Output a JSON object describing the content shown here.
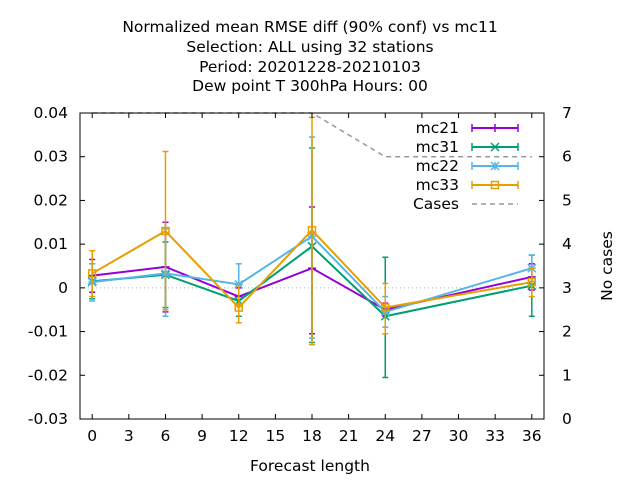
{
  "chart_data": {
    "type": "line",
    "title_lines": [
      "Normalized mean RMSE diff (90% conf) vs mc11",
      "Selection: ALL using    32 stations",
      "Period: 20201228-20210103",
      "Dew point T 300hPa   Hours:  00"
    ],
    "xlabel": "Forecast length",
    "ylabel_right": "No cases",
    "xlim": [
      -1,
      37
    ],
    "ylim": [
      -0.03,
      0.04
    ],
    "y2lim": [
      0,
      7
    ],
    "x_ticks": [
      0,
      3,
      6,
      9,
      12,
      15,
      18,
      21,
      24,
      27,
      30,
      33,
      36
    ],
    "y_ticks": [
      -0.03,
      -0.02,
      -0.01,
      0,
      0.01,
      0.02,
      0.03,
      0.04
    ],
    "y_tick_labels": [
      "-0.03",
      "-0.02",
      "-0.01",
      "0",
      "0.01",
      "0.02",
      "0.03",
      "0.04"
    ],
    "y2_ticks": [
      0,
      1,
      2,
      3,
      4,
      5,
      6,
      7
    ],
    "legend_position": "top-right",
    "series": [
      {
        "name": "mc21",
        "color": "#9400d3",
        "marker": "plus",
        "x": [
          0,
          6,
          12,
          18,
          24,
          36
        ],
        "y": [
          0.0028,
          0.0048,
          -0.002,
          0.0045,
          -0.005,
          0.0025
        ],
        "err_low": [
          -0.001,
          -0.0055,
          -0.004,
          -0.0105,
          -0.0065,
          -0.0005
        ],
        "err_high": [
          0.0065,
          0.015,
          0.0,
          0.0185,
          -0.0035,
          0.0055
        ]
      },
      {
        "name": "mc31",
        "color": "#009e73",
        "marker": "cross",
        "x": [
          0,
          6,
          12,
          18,
          24,
          36
        ],
        "y": [
          0.0015,
          0.003,
          -0.003,
          0.0095,
          -0.0065,
          0.0005
        ],
        "err_low": [
          -0.0025,
          -0.0045,
          -0.0065,
          -0.0125,
          -0.0205,
          -0.0065
        ],
        "err_high": [
          0.0055,
          0.0105,
          0.0005,
          0.032,
          0.007,
          0.0075
        ]
      },
      {
        "name": "mc22",
        "color": "#56b4e9",
        "marker": "star",
        "x": [
          0,
          6,
          12,
          18,
          24,
          36
        ],
        "y": [
          0.0013,
          0.0033,
          0.0008,
          0.0118,
          -0.0055,
          0.0045
        ],
        "err_low": [
          -0.003,
          -0.0065,
          -0.004,
          -0.0115,
          -0.009,
          0.0015
        ],
        "err_high": [
          0.0055,
          0.0135,
          0.0055,
          0.0345,
          -0.002,
          0.0075
        ]
      },
      {
        "name": "mc33",
        "color": "#e69f00",
        "marker": "square",
        "x": [
          0,
          6,
          12,
          18,
          24,
          36
        ],
        "y": [
          0.0033,
          0.013,
          -0.0045,
          0.0132,
          -0.0045,
          0.0013
        ],
        "err_low": [
          -0.002,
          -0.005,
          -0.008,
          -0.013,
          -0.0105,
          -0.002
        ],
        "err_high": [
          0.0085,
          0.0312,
          0.0005,
          0.039,
          0.001,
          0.0045
        ]
      },
      {
        "name": "Cases",
        "color": "#999999",
        "style": "dashed",
        "axis": "y2",
        "x": [
          0,
          6,
          12,
          18,
          24,
          36
        ],
        "y": [
          7,
          7,
          7,
          7,
          6,
          6
        ]
      }
    ]
  }
}
